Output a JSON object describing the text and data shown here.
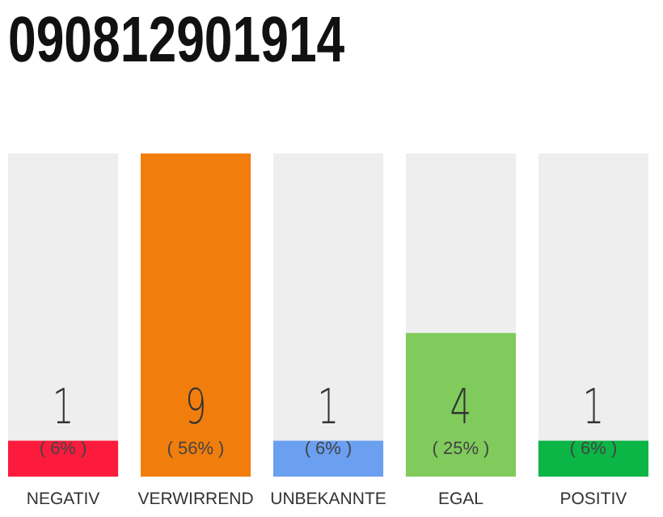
{
  "chart_data": {
    "type": "bar",
    "title": "090812901914",
    "categories": [
      "NEGATIV",
      "VERWIRREND",
      "UNBEKANNTE",
      "EGAL",
      "POSITIV"
    ],
    "values": [
      1,
      9,
      1,
      4,
      1
    ],
    "colors": [
      "#fc1b3d",
      "#f17e0c",
      "#6b9ff0",
      "#80cb5c",
      "#0bb546"
    ],
    "ylim": [
      0,
      9
    ],
    "data_labels": true,
    "tick_labels": "x",
    "annotations": [
      "( 6% )",
      "( 56% )",
      "( 6% )",
      "( 25% )",
      "( 6% )"
    ]
  }
}
